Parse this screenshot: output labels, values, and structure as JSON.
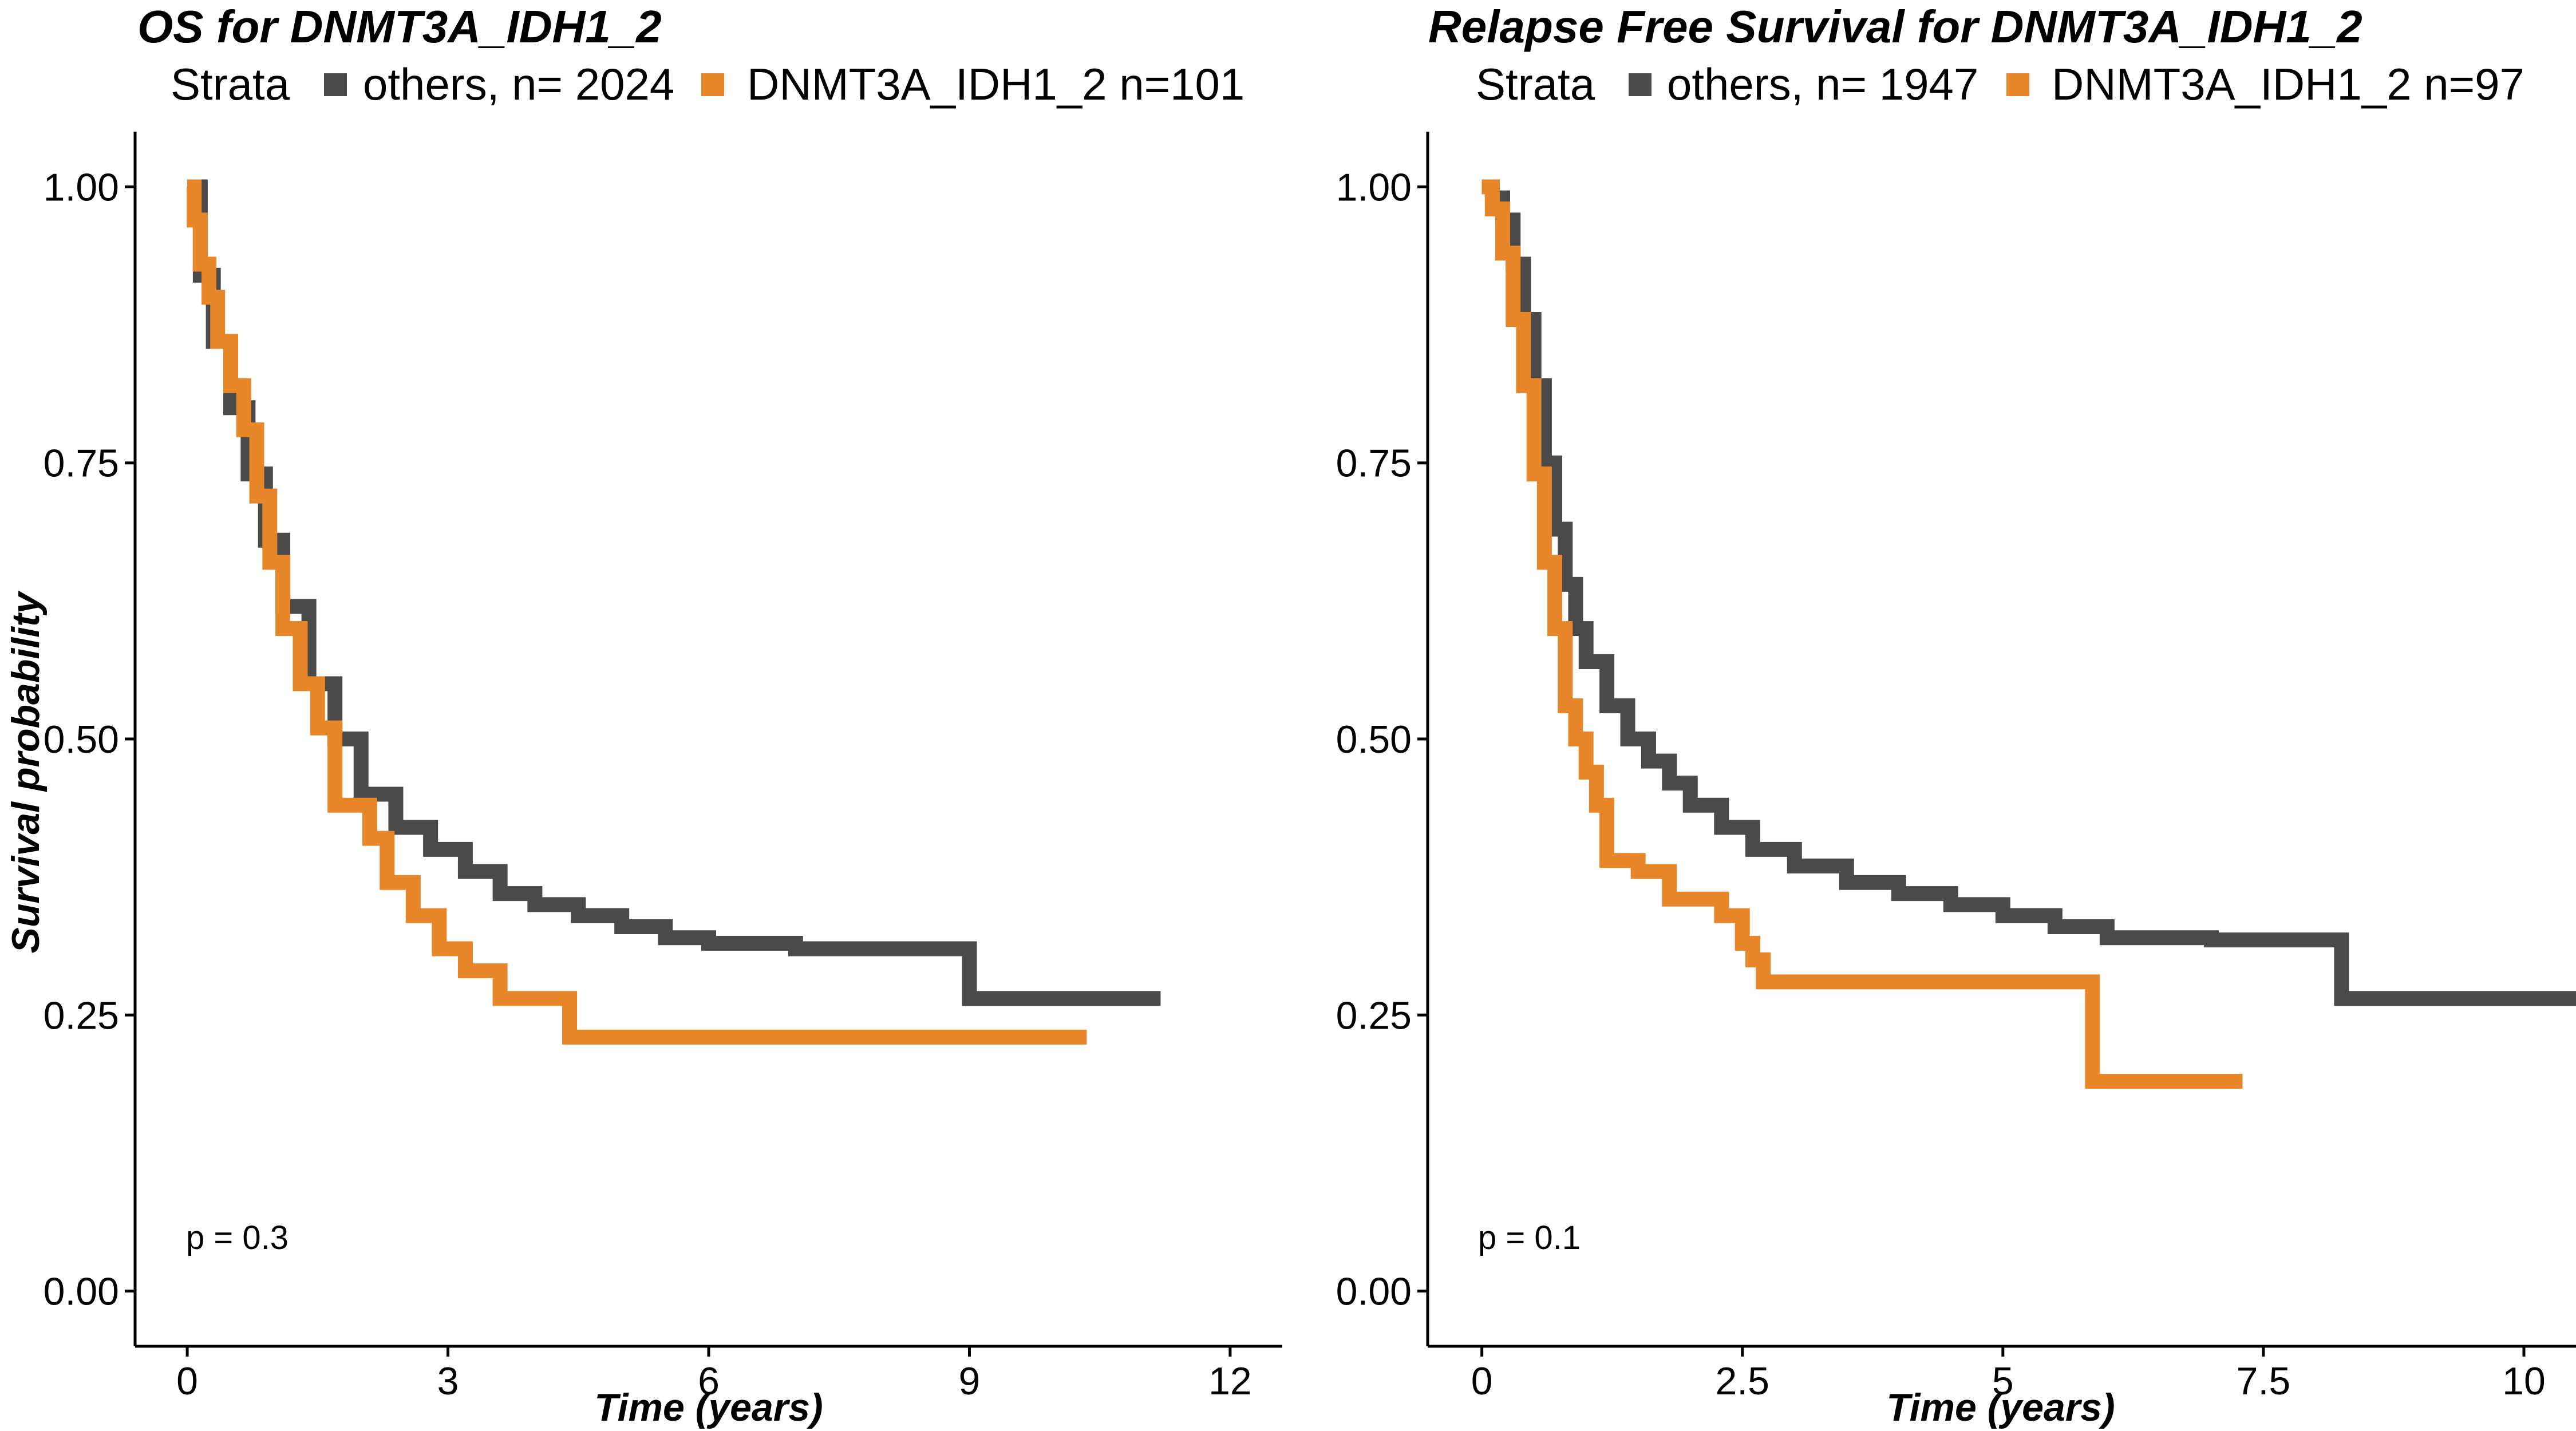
{
  "chart_data": [
    {
      "type": "line",
      "subtype": "kaplan-meier",
      "title": "OS  for  DNMT3A_IDH1_2",
      "legend_title": "Strata",
      "xlabel": "Time (years)",
      "ylabel": "Survival probability",
      "xlim": [
        -0.6,
        12.6
      ],
      "ylim": [
        -0.05,
        1.05
      ],
      "xticks": [
        0,
        3,
        6,
        9,
        12
      ],
      "xtick_labels": [
        "0",
        "3",
        "6",
        "9",
        "12"
      ],
      "yticks": [
        0,
        0.25,
        0.5,
        0.75,
        1.0
      ],
      "ytick_labels": [
        "0.00",
        "0.25",
        "0.50",
        "0.75",
        "1.00"
      ],
      "annotation": "p = 0.3",
      "series": [
        {
          "name": "others, n= 2024",
          "color": "#4a4a4a",
          "x": [
            0,
            0.15,
            0.3,
            0.5,
            0.7,
            0.9,
            1.1,
            1.4,
            1.7,
            2.0,
            2.4,
            2.8,
            3.2,
            3.6,
            4.0,
            4.5,
            5.0,
            5.5,
            6.0,
            6.5,
            7.0,
            8.0,
            9.0,
            11.2
          ],
          "y": [
            1.0,
            0.92,
            0.86,
            0.8,
            0.74,
            0.68,
            0.62,
            0.55,
            0.5,
            0.45,
            0.42,
            0.4,
            0.38,
            0.36,
            0.35,
            0.34,
            0.33,
            0.32,
            0.315,
            0.315,
            0.31,
            0.31,
            0.265,
            0.265
          ]
        },
        {
          "name": "DNMT3A_IDH1_2 n=101",
          "color": "#e8862a",
          "x": [
            0,
            0.08,
            0.15,
            0.25,
            0.35,
            0.5,
            0.65,
            0.8,
            0.95,
            1.1,
            1.3,
            1.5,
            1.7,
            2.1,
            2.3,
            2.6,
            2.9,
            3.2,
            3.6,
            4.3,
            4.4,
            10.35
          ],
          "y": [
            1.0,
            0.97,
            0.93,
            0.9,
            0.86,
            0.82,
            0.78,
            0.72,
            0.66,
            0.6,
            0.55,
            0.51,
            0.44,
            0.41,
            0.37,
            0.34,
            0.31,
            0.29,
            0.265,
            0.265,
            0.23,
            0.23
          ]
        }
      ]
    },
    {
      "type": "line",
      "subtype": "kaplan-meier",
      "title": "Relapse Free Survival for  DNMT3A_IDH1_2",
      "legend_title": "Strata",
      "xlabel": "Time (years)",
      "ylabel": "",
      "xlim": [
        -0.52,
        10.5
      ],
      "ylim": [
        -0.05,
        1.05
      ],
      "xticks": [
        0,
        2.5,
        5,
        7.5,
        10
      ],
      "xtick_labels": [
        "0",
        "2.5",
        "5",
        "7.5",
        "10"
      ],
      "yticks": [
        0,
        0.25,
        0.5,
        0.75,
        1.0
      ],
      "ytick_labels": [
        "0.00",
        "0.25",
        "0.50",
        "0.75",
        "1.00"
      ],
      "annotation": "p = 0.1",
      "series": [
        {
          "name": "others, n= 1947",
          "color": "#4a4a4a",
          "x": [
            0,
            0.1,
            0.2,
            0.3,
            0.4,
            0.5,
            0.6,
            0.7,
            0.8,
            0.9,
            1.0,
            1.2,
            1.4,
            1.6,
            1.8,
            2.0,
            2.3,
            2.6,
            3.0,
            3.5,
            4.0,
            4.5,
            5.0,
            5.5,
            6.0,
            7.0,
            8.0,
            8.25,
            10.5
          ],
          "y": [
            1.0,
            0.99,
            0.97,
            0.93,
            0.88,
            0.82,
            0.75,
            0.69,
            0.64,
            0.6,
            0.57,
            0.53,
            0.5,
            0.48,
            0.46,
            0.44,
            0.42,
            0.4,
            0.385,
            0.37,
            0.36,
            0.35,
            0.34,
            0.33,
            0.32,
            0.318,
            0.318,
            0.265,
            0.265
          ]
        },
        {
          "name": "DNMT3A_IDH1_2 n=97",
          "color": "#e8862a",
          "x": [
            0,
            0.1,
            0.2,
            0.3,
            0.4,
            0.5,
            0.6,
            0.7,
            0.8,
            0.9,
            1.0,
            1.1,
            1.2,
            1.5,
            1.8,
            2.3,
            2.5,
            2.6,
            2.7,
            5.85,
            5.86,
            7.3
          ],
          "y": [
            1.0,
            0.98,
            0.94,
            0.88,
            0.82,
            0.74,
            0.66,
            0.6,
            0.53,
            0.5,
            0.47,
            0.44,
            0.39,
            0.38,
            0.355,
            0.34,
            0.315,
            0.3,
            0.28,
            0.28,
            0.19,
            0.19
          ]
        }
      ]
    }
  ]
}
